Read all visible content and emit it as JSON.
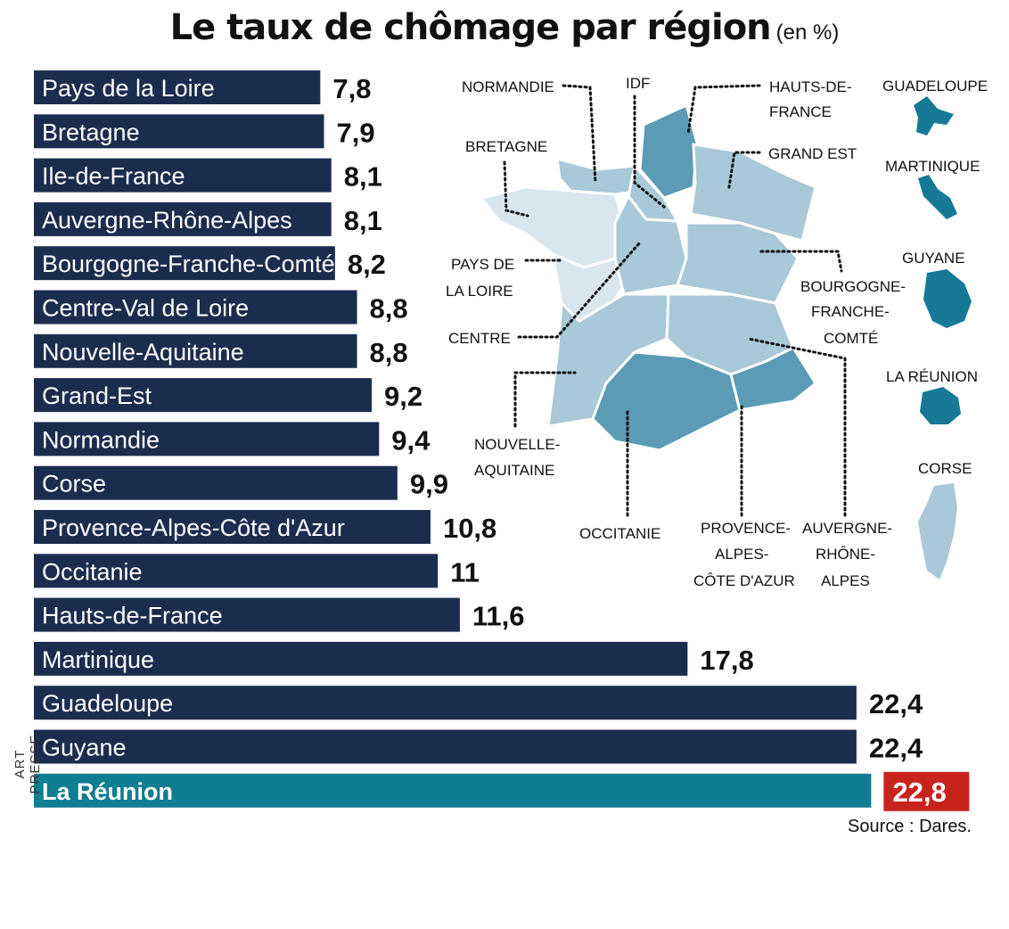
{
  "title": "Le taux de chômage par région",
  "subtitle": "(en %)",
  "credit": "ART PRESSE",
  "source": "Source : Dares.",
  "colors": {
    "bar": "#1b2d4f",
    "highlight_bar": "#0f7d92",
    "highlight_value_bg": "#c8241e",
    "map_light": "#d8e6ee",
    "map_mid": "#a9c8d8",
    "map_dark": "#5b9bb5",
    "map_darkest": "#167a96"
  },
  "chart_data": {
    "type": "bar",
    "orientation": "horizontal",
    "title": "Le taux de chômage par région",
    "unit": "%",
    "highlight": "La Réunion",
    "categories": [
      "Pays de la Loire",
      "Bretagne",
      "Ile-de-France",
      "Auvergne-Rhône-Alpes",
      "Bourgogne-Franche-Comté",
      "Centre-Val de Loire",
      "Nouvelle-Aquitaine",
      "Grand-Est",
      "Normandie",
      "Corse",
      "Provence-Alpes-Côte d'Azur",
      "Occitanie",
      "Hauts-de-France",
      "Martinique",
      "Guadeloupe",
      "Guyane",
      "La Réunion"
    ],
    "values": [
      7.8,
      7.9,
      8.1,
      8.1,
      8.2,
      8.8,
      8.8,
      9.2,
      9.4,
      9.9,
      10.8,
      11,
      11.6,
      17.8,
      22.4,
      22.4,
      22.8
    ],
    "value_labels": [
      "7,8",
      "7,9",
      "8,1",
      "8,1",
      "8,2",
      "8,8",
      "8,8",
      "9,2",
      "9,4",
      "9,9",
      "10,8",
      "11",
      "11,6",
      "17,8",
      "22,4",
      "22,4",
      "22,8"
    ]
  },
  "map_labels": {
    "normandie": "NORMANDIE",
    "idf": "IDF",
    "hauts_de_france": [
      "HAUTS-DE-",
      "FRANCE"
    ],
    "bretagne": "BRETAGNE",
    "grand_est": "GRAND EST",
    "pays_de_la_loire": [
      "PAYS DE",
      "LA LOIRE"
    ],
    "bourgogne": [
      "BOURGOGNE-",
      "FRANCHE-",
      "COMTÉ"
    ],
    "centre": "CENTRE",
    "nouvelle_aquitaine": [
      "NOUVELLE-",
      "AQUITAINE"
    ],
    "occitanie": "OCCITANIE",
    "paca": [
      "PROVENCE-",
      "ALPES-",
      "CÔTE D'AZUR"
    ],
    "auvergne": [
      "AUVERGNE-",
      "RHÔNE-",
      "ALPES"
    ],
    "guadeloupe": "GUADELOUPE",
    "martinique": "MARTINIQUE",
    "guyane": "GUYANE",
    "reunion": "LA RÉUNION",
    "corse": "CORSE"
  }
}
